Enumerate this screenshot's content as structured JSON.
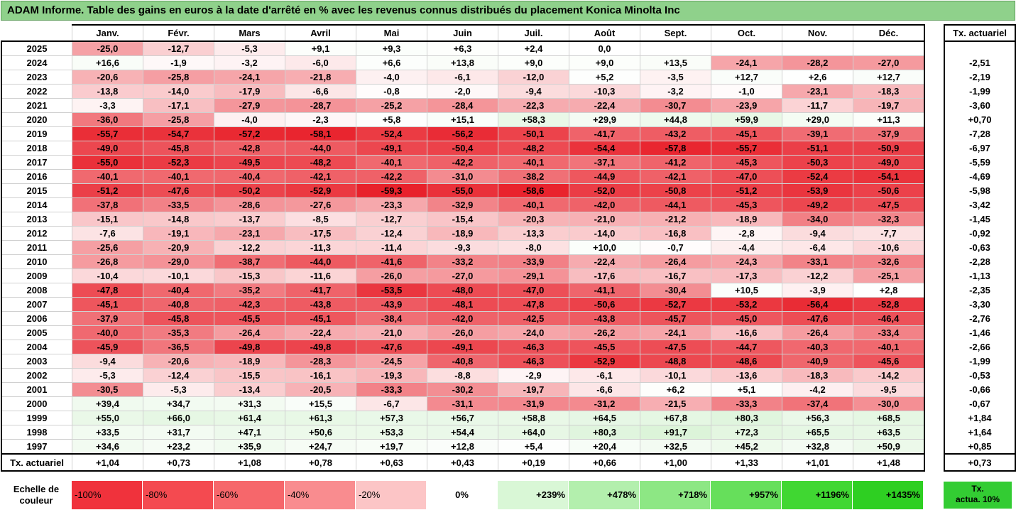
{
  "title": "ADAM Informe. Table des gains en euros à la date d'arrêté en % avec les revenus connus distribués du placement Konica Minolta Inc",
  "months": [
    "Janv.",
    "Févr.",
    "Mars",
    "Avril",
    "Mai",
    "Juin",
    "Juil.",
    "Août",
    "Sept.",
    "Oct.",
    "Nov.",
    "Déc."
  ],
  "side_header": "Tx. actuariel",
  "rows": [
    {
      "year": "2025",
      "values": [
        "-25,0",
        "-12,7",
        "-5,3",
        "+9,1",
        "+9,3",
        "+6,3",
        "+2,4",
        "0,0",
        "",
        "",
        "",
        ""
      ],
      "tx": ""
    },
    {
      "year": "2024",
      "values": [
        "+16,6",
        "-1,9",
        "-3,2",
        "-6,0",
        "+6,6",
        "+13,8",
        "+9,0",
        "+9,0",
        "+13,5",
        "-24,1",
        "-28,2",
        "-27,0"
      ],
      "tx": "-2,51"
    },
    {
      "year": "2023",
      "values": [
        "-20,6",
        "-25,8",
        "-24,1",
        "-21,8",
        "-4,0",
        "-6,1",
        "-12,0",
        "+5,2",
        "-3,5",
        "+12,7",
        "+2,6",
        "+12,7"
      ],
      "tx": "-2,19"
    },
    {
      "year": "2022",
      "values": [
        "-13,8",
        "-14,0",
        "-17,9",
        "-6,6",
        "-0,8",
        "-2,0",
        "-9,4",
        "-10,3",
        "-3,2",
        "-1,0",
        "-23,1",
        "-18,3"
      ],
      "tx": "-1,99"
    },
    {
      "year": "2021",
      "values": [
        "-3,3",
        "-17,1",
        "-27,9",
        "-28,7",
        "-25,2",
        "-28,4",
        "-22,3",
        "-22,4",
        "-30,7",
        "-23,9",
        "-11,7",
        "-19,7"
      ],
      "tx": "-3,60"
    },
    {
      "year": "2020",
      "values": [
        "-36,0",
        "-25,8",
        "-4,0",
        "-2,3",
        "+5,8",
        "+15,1",
        "+58,3",
        "+29,9",
        "+44,8",
        "+59,9",
        "+29,0",
        "+11,3"
      ],
      "tx": "+0,70"
    },
    {
      "year": "2019",
      "values": [
        "-55,7",
        "-54,7",
        "-57,2",
        "-58,1",
        "-52,4",
        "-56,2",
        "-50,1",
        "-41,7",
        "-43,2",
        "-45,1",
        "-39,1",
        "-37,9"
      ],
      "tx": "-7,28"
    },
    {
      "year": "2018",
      "values": [
        "-49,0",
        "-45,8",
        "-42,8",
        "-44,0",
        "-49,1",
        "-50,4",
        "-48,2",
        "-54,4",
        "-57,8",
        "-55,7",
        "-51,1",
        "-50,9"
      ],
      "tx": "-6,97"
    },
    {
      "year": "2017",
      "values": [
        "-55,0",
        "-52,3",
        "-49,5",
        "-48,2",
        "-40,1",
        "-42,2",
        "-40,1",
        "-37,1",
        "-41,2",
        "-45,3",
        "-50,3",
        "-49,0"
      ],
      "tx": "-5,59"
    },
    {
      "year": "2016",
      "values": [
        "-40,1",
        "-40,1",
        "-40,4",
        "-42,1",
        "-42,2",
        "-31,0",
        "-38,2",
        "-44,9",
        "-42,1",
        "-47,0",
        "-52,4",
        "-54,1"
      ],
      "tx": "-4,69"
    },
    {
      "year": "2015",
      "values": [
        "-51,2",
        "-47,6",
        "-50,2",
        "-52,9",
        "-59,3",
        "-55,0",
        "-58,6",
        "-52,0",
        "-50,8",
        "-51,2",
        "-53,9",
        "-50,6"
      ],
      "tx": "-5,98"
    },
    {
      "year": "2014",
      "values": [
        "-37,8",
        "-33,5",
        "-28,6",
        "-27,6",
        "-23,3",
        "-32,9",
        "-40,1",
        "-42,0",
        "-44,1",
        "-45,3",
        "-49,2",
        "-47,5"
      ],
      "tx": "-3,42"
    },
    {
      "year": "2013",
      "values": [
        "-15,1",
        "-14,8",
        "-13,7",
        "-8,5",
        "-12,7",
        "-15,4",
        "-20,3",
        "-21,0",
        "-21,2",
        "-18,9",
        "-34,0",
        "-32,3"
      ],
      "tx": "-1,45"
    },
    {
      "year": "2012",
      "values": [
        "-7,6",
        "-19,1",
        "-23,1",
        "-17,5",
        "-12,4",
        "-18,9",
        "-13,3",
        "-14,0",
        "-16,8",
        "-2,8",
        "-9,4",
        "-7,7"
      ],
      "tx": "-0,92"
    },
    {
      "year": "2011",
      "values": [
        "-25,6",
        "-20,9",
        "-12,2",
        "-11,3",
        "-11,4",
        "-9,3",
        "-8,0",
        "+10,0",
        "-0,7",
        "-4,4",
        "-6,4",
        "-10,6"
      ],
      "tx": "-0,63"
    },
    {
      "year": "2010",
      "values": [
        "-26,8",
        "-29,0",
        "-38,7",
        "-44,0",
        "-41,6",
        "-33,2",
        "-33,9",
        "-22,4",
        "-26,4",
        "-24,3",
        "-33,1",
        "-32,6"
      ],
      "tx": "-2,28"
    },
    {
      "year": "2009",
      "values": [
        "-10,4",
        "-10,1",
        "-15,3",
        "-11,6",
        "-26,0",
        "-27,0",
        "-29,1",
        "-17,6",
        "-16,7",
        "-17,3",
        "-12,2",
        "-25,1"
      ],
      "tx": "-1,13"
    },
    {
      "year": "2008",
      "values": [
        "-47,8",
        "-40,4",
        "-35,2",
        "-41,7",
        "-53,5",
        "-48,0",
        "-47,0",
        "-41,1",
        "-30,4",
        "+10,5",
        "-3,9",
        "+2,8"
      ],
      "tx": "-2,35"
    },
    {
      "year": "2007",
      "values": [
        "-45,1",
        "-40,8",
        "-42,3",
        "-43,8",
        "-43,9",
        "-48,1",
        "-47,8",
        "-50,6",
        "-52,7",
        "-53,2",
        "-56,4",
        "-52,8"
      ],
      "tx": "-3,30"
    },
    {
      "year": "2006",
      "values": [
        "-37,9",
        "-45,8",
        "-45,5",
        "-45,1",
        "-38,4",
        "-42,0",
        "-42,5",
        "-43,8",
        "-45,7",
        "-45,0",
        "-47,6",
        "-46,4"
      ],
      "tx": "-2,76"
    },
    {
      "year": "2005",
      "values": [
        "-40,0",
        "-35,3",
        "-26,4",
        "-22,4",
        "-21,0",
        "-26,0",
        "-24,0",
        "-26,2",
        "-24,1",
        "-16,6",
        "-26,4",
        "-33,4"
      ],
      "tx": "-1,46"
    },
    {
      "year": "2004",
      "values": [
        "-45,9",
        "-36,5",
        "-49,8",
        "-49,8",
        "-47,6",
        "-49,1",
        "-46,3",
        "-45,5",
        "-47,5",
        "-44,7",
        "-40,3",
        "-40,1"
      ],
      "tx": "-2,66"
    },
    {
      "year": "2003",
      "values": [
        "-9,4",
        "-20,6",
        "-18,9",
        "-28,3",
        "-24,5",
        "-40,8",
        "-46,3",
        "-52,9",
        "-48,8",
        "-48,6",
        "-40,9",
        "-45,6"
      ],
      "tx": "-1,99"
    },
    {
      "year": "2002",
      "values": [
        "-5,3",
        "-12,4",
        "-15,5",
        "-16,1",
        "-19,3",
        "-8,8",
        "-2,9",
        "-6,1",
        "-10,1",
        "-13,6",
        "-18,3",
        "-14,2"
      ],
      "tx": "-0,53"
    },
    {
      "year": "2001",
      "values": [
        "-30,5",
        "-5,3",
        "-13,4",
        "-20,5",
        "-33,3",
        "-30,2",
        "-19,7",
        "-6,6",
        "+6,2",
        "+5,1",
        "-4,2",
        "-9,5"
      ],
      "tx": "-0,66"
    },
    {
      "year": "2000",
      "values": [
        "+39,4",
        "+34,7",
        "+31,3",
        "+15,5",
        "-6,7",
        "-31,1",
        "-31,9",
        "-31,2",
        "-21,5",
        "-33,3",
        "-37,4",
        "-30,0"
      ],
      "tx": "-0,67"
    },
    {
      "year": "1999",
      "values": [
        "+55,0",
        "+66,0",
        "+61,4",
        "+61,3",
        "+57,3",
        "+56,7",
        "+58,8",
        "+64,5",
        "+67,8",
        "+80,3",
        "+56,3",
        "+68,5"
      ],
      "tx": "+1,84"
    },
    {
      "year": "1998",
      "values": [
        "+33,5",
        "+31,7",
        "+47,1",
        "+50,6",
        "+53,3",
        "+54,4",
        "+64,0",
        "+80,3",
        "+91,7",
        "+72,3",
        "+65,5",
        "+63,5"
      ],
      "tx": "+1,64"
    },
    {
      "year": "1997",
      "values": [
        "+34,6",
        "+23,2",
        "+35,9",
        "+24,7",
        "+19,7",
        "+12,8",
        "+5,4",
        "+20,4",
        "+32,5",
        "+45,2",
        "+32,8",
        "+50,9"
      ],
      "tx": "+0,85"
    }
  ],
  "footer": {
    "label": "Tx. actuariel",
    "values": [
      "+1,04",
      "+0,73",
      "+1,08",
      "+0,78",
      "+0,63",
      "+0,43",
      "+0,19",
      "+0,66",
      "+1,00",
      "+1,33",
      "+1,01",
      "+1,48"
    ],
    "tx": "+0,73"
  },
  "scale": {
    "label_line1": "Echelle de",
    "label_line2": "couleur",
    "swatches": [
      {
        "text": "-100%",
        "color": "#f0323c",
        "kind": "neg"
      },
      {
        "text": "-80%",
        "color": "#f44a50",
        "kind": "neg"
      },
      {
        "text": "-60%",
        "color": "#f6676b",
        "kind": "neg"
      },
      {
        "text": "-40%",
        "color": "#f98c8f",
        "kind": "neg"
      },
      {
        "text": "-20%",
        "color": "#fcc5c6",
        "kind": "neg"
      },
      {
        "text": "0%",
        "color": "#ffffff",
        "kind": "zero"
      },
      {
        "text": "+239%",
        "color": "#d9f7d6",
        "kind": "pos"
      },
      {
        "text": "+478%",
        "color": "#b3efad",
        "kind": "pos"
      },
      {
        "text": "+718%",
        "color": "#8de784",
        "kind": "pos"
      },
      {
        "text": "+957%",
        "color": "#66df5b",
        "kind": "pos"
      },
      {
        "text": "+1196%",
        "color": "#40d732",
        "kind": "pos"
      },
      {
        "text": "+1435%",
        "color": "#2ecf22",
        "kind": "pos"
      }
    ],
    "extra_line1": "Tx.",
    "extra_line2": "actua. 10%",
    "extra_color": "#33cc33"
  }
}
